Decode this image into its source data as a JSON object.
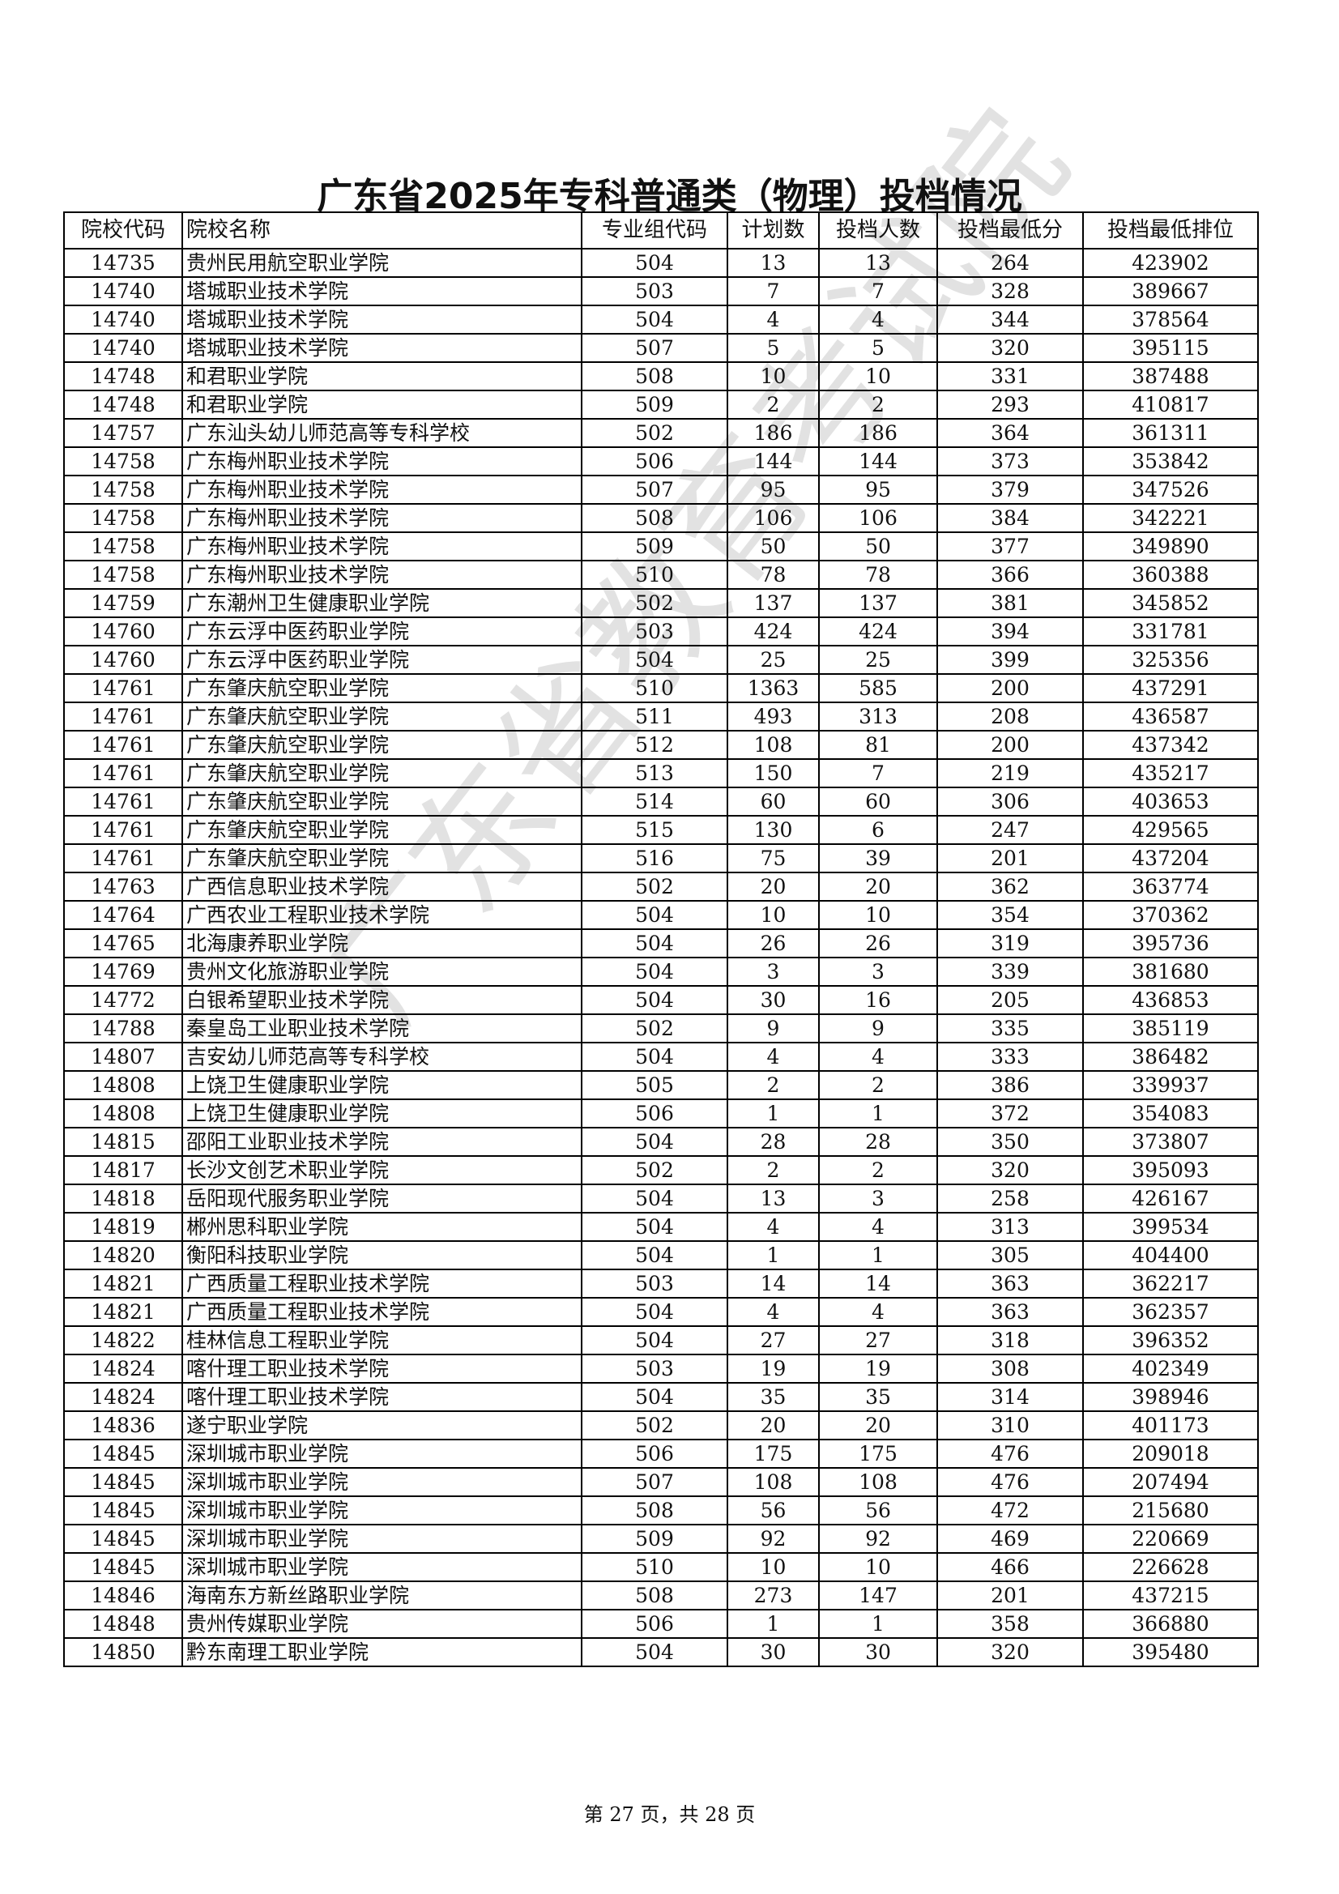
{
  "title": "广东省2025年专科普通类（物理）投档情况",
  "watermark": "广东省教育考试院",
  "table": {
    "headers": [
      "院校代码",
      "院校名称",
      "专业组代码",
      "计划数",
      "投档人数",
      "投档最低分",
      "投档最低排位"
    ],
    "rows": [
      [
        "14735",
        "贵州民用航空职业学院",
        "504",
        "13",
        "13",
        "264",
        "423902"
      ],
      [
        "14740",
        "塔城职业技术学院",
        "503",
        "7",
        "7",
        "328",
        "389667"
      ],
      [
        "14740",
        "塔城职业技术学院",
        "504",
        "4",
        "4",
        "344",
        "378564"
      ],
      [
        "14740",
        "塔城职业技术学院",
        "507",
        "5",
        "5",
        "320",
        "395115"
      ],
      [
        "14748",
        "和君职业学院",
        "508",
        "10",
        "10",
        "331",
        "387488"
      ],
      [
        "14748",
        "和君职业学院",
        "509",
        "2",
        "2",
        "293",
        "410817"
      ],
      [
        "14757",
        "广东汕头幼儿师范高等专科学校",
        "502",
        "186",
        "186",
        "364",
        "361311"
      ],
      [
        "14758",
        "广东梅州职业技术学院",
        "506",
        "144",
        "144",
        "373",
        "353842"
      ],
      [
        "14758",
        "广东梅州职业技术学院",
        "507",
        "95",
        "95",
        "379",
        "347526"
      ],
      [
        "14758",
        "广东梅州职业技术学院",
        "508",
        "106",
        "106",
        "384",
        "342221"
      ],
      [
        "14758",
        "广东梅州职业技术学院",
        "509",
        "50",
        "50",
        "377",
        "349890"
      ],
      [
        "14758",
        "广东梅州职业技术学院",
        "510",
        "78",
        "78",
        "366",
        "360388"
      ],
      [
        "14759",
        "广东潮州卫生健康职业学院",
        "502",
        "137",
        "137",
        "381",
        "345852"
      ],
      [
        "14760",
        "广东云浮中医药职业学院",
        "503",
        "424",
        "424",
        "394",
        "331781"
      ],
      [
        "14760",
        "广东云浮中医药职业学院",
        "504",
        "25",
        "25",
        "399",
        "325356"
      ],
      [
        "14761",
        "广东肇庆航空职业学院",
        "510",
        "1363",
        "585",
        "200",
        "437291"
      ],
      [
        "14761",
        "广东肇庆航空职业学院",
        "511",
        "493",
        "313",
        "208",
        "436587"
      ],
      [
        "14761",
        "广东肇庆航空职业学院",
        "512",
        "108",
        "81",
        "200",
        "437342"
      ],
      [
        "14761",
        "广东肇庆航空职业学院",
        "513",
        "150",
        "7",
        "219",
        "435217"
      ],
      [
        "14761",
        "广东肇庆航空职业学院",
        "514",
        "60",
        "60",
        "306",
        "403653"
      ],
      [
        "14761",
        "广东肇庆航空职业学院",
        "515",
        "130",
        "6",
        "247",
        "429565"
      ],
      [
        "14761",
        "广东肇庆航空职业学院",
        "516",
        "75",
        "39",
        "201",
        "437204"
      ],
      [
        "14763",
        "广西信息职业技术学院",
        "502",
        "20",
        "20",
        "362",
        "363774"
      ],
      [
        "14764",
        "广西农业工程职业技术学院",
        "504",
        "10",
        "10",
        "354",
        "370362"
      ],
      [
        "14765",
        "北海康养职业学院",
        "504",
        "26",
        "26",
        "319",
        "395736"
      ],
      [
        "14769",
        "贵州文化旅游职业学院",
        "504",
        "3",
        "3",
        "339",
        "381680"
      ],
      [
        "14772",
        "白银希望职业技术学院",
        "504",
        "30",
        "16",
        "205",
        "436853"
      ],
      [
        "14788",
        "秦皇岛工业职业技术学院",
        "502",
        "9",
        "9",
        "335",
        "385119"
      ],
      [
        "14807",
        "吉安幼儿师范高等专科学校",
        "504",
        "4",
        "4",
        "333",
        "386482"
      ],
      [
        "14808",
        "上饶卫生健康职业学院",
        "505",
        "2",
        "2",
        "386",
        "339937"
      ],
      [
        "14808",
        "上饶卫生健康职业学院",
        "506",
        "1",
        "1",
        "372",
        "354083"
      ],
      [
        "14815",
        "邵阳工业职业技术学院",
        "504",
        "28",
        "28",
        "350",
        "373807"
      ],
      [
        "14817",
        "长沙文创艺术职业学院",
        "502",
        "2",
        "2",
        "320",
        "395093"
      ],
      [
        "14818",
        "岳阳现代服务职业学院",
        "504",
        "13",
        "3",
        "258",
        "426167"
      ],
      [
        "14819",
        "郴州思科职业学院",
        "504",
        "4",
        "4",
        "313",
        "399534"
      ],
      [
        "14820",
        "衡阳科技职业学院",
        "504",
        "1",
        "1",
        "305",
        "404400"
      ],
      [
        "14821",
        "广西质量工程职业技术学院",
        "503",
        "14",
        "14",
        "363",
        "362217"
      ],
      [
        "14821",
        "广西质量工程职业技术学院",
        "504",
        "4",
        "4",
        "363",
        "362357"
      ],
      [
        "14822",
        "桂林信息工程职业学院",
        "504",
        "27",
        "27",
        "318",
        "396352"
      ],
      [
        "14824",
        "喀什理工职业技术学院",
        "503",
        "19",
        "19",
        "308",
        "402349"
      ],
      [
        "14824",
        "喀什理工职业技术学院",
        "504",
        "35",
        "35",
        "314",
        "398946"
      ],
      [
        "14836",
        "遂宁职业学院",
        "502",
        "20",
        "20",
        "310",
        "401173"
      ],
      [
        "14845",
        "深圳城市职业学院",
        "506",
        "175",
        "175",
        "476",
        "209018"
      ],
      [
        "14845",
        "深圳城市职业学院",
        "507",
        "108",
        "108",
        "476",
        "207494"
      ],
      [
        "14845",
        "深圳城市职业学院",
        "508",
        "56",
        "56",
        "472",
        "215680"
      ],
      [
        "14845",
        "深圳城市职业学院",
        "509",
        "92",
        "92",
        "469",
        "220669"
      ],
      [
        "14845",
        "深圳城市职业学院",
        "510",
        "10",
        "10",
        "466",
        "226628"
      ],
      [
        "14846",
        "海南东方新丝路职业学院",
        "508",
        "273",
        "147",
        "201",
        "437215"
      ],
      [
        "14848",
        "贵州传媒职业学院",
        "506",
        "1",
        "1",
        "358",
        "366880"
      ],
      [
        "14850",
        "黔东南理工职业学院",
        "504",
        "30",
        "30",
        "320",
        "395480"
      ]
    ]
  },
  "footer": "第 27 页，共 28 页"
}
